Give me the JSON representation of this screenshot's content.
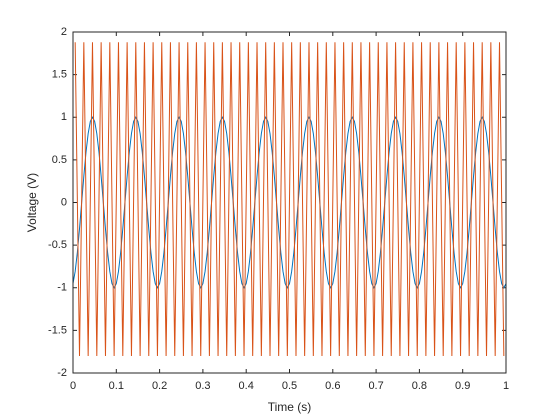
{
  "chart_data": {
    "type": "line",
    "x_label": "Time (s)",
    "y_label": "Voltage (V)",
    "xlim": [
      0,
      1
    ],
    "ylim": [
      -2,
      2
    ],
    "xticks": [
      0,
      0.1,
      0.2,
      0.3,
      0.4,
      0.5,
      0.6,
      0.7,
      0.8,
      0.9,
      1
    ],
    "yticks": [
      -2,
      -1.5,
      -1,
      -0.5,
      0,
      0.5,
      1,
      1.5,
      2
    ],
    "series": [
      {
        "color": "#0072BD",
        "x": [
          0,
          0.005,
          0.01,
          0.015,
          0.02,
          0.025,
          0.03,
          0.035,
          0.04,
          0.045,
          0.05,
          0.055,
          0.06,
          0.065,
          0.07,
          0.075,
          0.08,
          0.085,
          0.09,
          0.095,
          0.1,
          0.105,
          0.11,
          0.115,
          0.12,
          0.125,
          0.13,
          0.135,
          0.14,
          0.145,
          0.15,
          0.155,
          0.16,
          0.165,
          0.17,
          0.175,
          0.18,
          0.185,
          0.19,
          0.195,
          0.2,
          0.205,
          0.21,
          0.215,
          0.22,
          0.225,
          0.23,
          0.235,
          0.24,
          0.245,
          0.25,
          0.255,
          0.26,
          0.265,
          0.27,
          0.275,
          0.28,
          0.285,
          0.29,
          0.295,
          0.3,
          0.305,
          0.31,
          0.315,
          0.32,
          0.325,
          0.33,
          0.335,
          0.34,
          0.345,
          0.35,
          0.355,
          0.36,
          0.365,
          0.37,
          0.375,
          0.38,
          0.385,
          0.39,
          0.395,
          0.4,
          0.405,
          0.41,
          0.415,
          0.42,
          0.425,
          0.43,
          0.435,
          0.44,
          0.445,
          0.45,
          0.455,
          0.46,
          0.465,
          0.47,
          0.475,
          0.48,
          0.485,
          0.49,
          0.495,
          0.5,
          0.505,
          0.51,
          0.515,
          0.52,
          0.525,
          0.53,
          0.535,
          0.54,
          0.545,
          0.55,
          0.555,
          0.56,
          0.565,
          0.57,
          0.575,
          0.58,
          0.585,
          0.59,
          0.595,
          0.6,
          0.605,
          0.61,
          0.615,
          0.62,
          0.625,
          0.63,
          0.635,
          0.64,
          0.645,
          0.65,
          0.655,
          0.66,
          0.665,
          0.67,
          0.675,
          0.68,
          0.685,
          0.69,
          0.695,
          0.7,
          0.705,
          0.71,
          0.715,
          0.72,
          0.725,
          0.73,
          0.735,
          0.74,
          0.745,
          0.75,
          0.755,
          0.76,
          0.765,
          0.77,
          0.775,
          0.78,
          0.785,
          0.79,
          0.795,
          0.8,
          0.805,
          0.81,
          0.815,
          0.82,
          0.825,
          0.83,
          0.835,
          0.84,
          0.845,
          0.85,
          0.855,
          0.86,
          0.865,
          0.87,
          0.875,
          0.88,
          0.885,
          0.89,
          0.895,
          0.9,
          0.905,
          0.91,
          0.915,
          0.92,
          0.925,
          0.93,
          0.935,
          0.94,
          0.945,
          0.95,
          0.955,
          0.96,
          0.965,
          0.97,
          0.975,
          0.98,
          0.985,
          0.99,
          0.995,
          1
        ],
        "values": [
          -0.951,
          -0.809,
          -0.588,
          -0.309,
          0,
          0.309,
          0.588,
          0.809,
          0.951,
          1,
          0.951,
          0.809,
          0.588,
          0.309,
          0,
          -0.309,
          -0.588,
          -0.809,
          -0.951,
          -1,
          -0.951,
          -0.809,
          -0.588,
          -0.309,
          0,
          0.309,
          0.588,
          0.809,
          0.951,
          1,
          0.951,
          0.809,
          0.588,
          0.309,
          0,
          -0.309,
          -0.588,
          -0.809,
          -0.951,
          -1,
          -0.951,
          -0.809,
          -0.588,
          -0.309,
          0,
          0.309,
          0.588,
          0.809,
          0.951,
          1,
          0.951,
          0.809,
          0.588,
          0.309,
          0,
          -0.309,
          -0.588,
          -0.809,
          -0.951,
          -1,
          -0.951,
          -0.809,
          -0.588,
          -0.309,
          0,
          0.309,
          0.588,
          0.809,
          0.951,
          1,
          0.951,
          0.809,
          0.588,
          0.309,
          0,
          -0.309,
          -0.588,
          -0.809,
          -0.951,
          -1,
          -0.951,
          -0.809,
          -0.588,
          -0.309,
          0,
          0.309,
          0.588,
          0.809,
          0.951,
          1,
          0.951,
          0.809,
          0.588,
          0.309,
          0,
          -0.309,
          -0.588,
          -0.809,
          -0.951,
          -1,
          -0.951,
          -0.809,
          -0.588,
          -0.309,
          0,
          0.309,
          0.588,
          0.809,
          0.951,
          1,
          0.951,
          0.809,
          0.588,
          0.309,
          0,
          -0.309,
          -0.588,
          -0.809,
          -0.951,
          -1,
          -0.951,
          -0.809,
          -0.588,
          -0.309,
          0,
          0.309,
          0.588,
          0.809,
          0.951,
          1,
          0.951,
          0.809,
          0.588,
          0.309,
          0,
          -0.309,
          -0.588,
          -0.809,
          -0.951,
          -1,
          -0.951,
          -0.809,
          -0.588,
          -0.309,
          0,
          0.309,
          0.588,
          0.809,
          0.951,
          1,
          0.951,
          0.809,
          0.588,
          0.309,
          0,
          -0.309,
          -0.588,
          -0.809,
          -0.951,
          -1,
          -0.951,
          -0.809,
          -0.588,
          -0.309,
          0,
          0.309,
          0.588,
          0.809,
          0.951,
          1,
          0.951,
          0.809,
          0.588,
          0.309,
          0,
          -0.309,
          -0.588,
          -0.809,
          -0.951,
          -1,
          -0.951,
          -0.809,
          -0.588,
          -0.309,
          0,
          0.309,
          0.588,
          0.809,
          0.951,
          1,
          0.951,
          0.809,
          0.588,
          0.309,
          0,
          -0.309,
          -0.588,
          -0.809,
          -0.951,
          -1,
          -0.951
        ]
      },
      {
        "color": "#D95319",
        "x": [
          0.005,
          0.015,
          0.025,
          0.035,
          0.045,
          0.055,
          0.065,
          0.075,
          0.085,
          0.095,
          0.105,
          0.115,
          0.125,
          0.135,
          0.145,
          0.155,
          0.165,
          0.175,
          0.185,
          0.195,
          0.205,
          0.215,
          0.225,
          0.235,
          0.245,
          0.255,
          0.265,
          0.275,
          0.285,
          0.295,
          0.305,
          0.315,
          0.325,
          0.335,
          0.345,
          0.355,
          0.365,
          0.375,
          0.385,
          0.395,
          0.405,
          0.415,
          0.425,
          0.435,
          0.445,
          0.455,
          0.465,
          0.475,
          0.485,
          0.495,
          0.505,
          0.515,
          0.525,
          0.535,
          0.545,
          0.555,
          0.565,
          0.575,
          0.585,
          0.595,
          0.605,
          0.615,
          0.625,
          0.635,
          0.645,
          0.655,
          0.665,
          0.675,
          0.685,
          0.695,
          0.705,
          0.715,
          0.725,
          0.735,
          0.745,
          0.755,
          0.765,
          0.775,
          0.785,
          0.795,
          0.805,
          0.815,
          0.825,
          0.835,
          0.845,
          0.855,
          0.865,
          0.875,
          0.885,
          0.895,
          0.905,
          0.915,
          0.925,
          0.935,
          0.945,
          0.955,
          0.965,
          0.975,
          0.985,
          0.995
        ],
        "values": [
          1.88,
          -1.8,
          1.88,
          -1.8,
          1.88,
          -1.8,
          1.88,
          -1.8,
          1.88,
          -1.8,
          1.88,
          -1.8,
          1.88,
          -1.8,
          1.88,
          -1.8,
          1.88,
          -1.8,
          1.88,
          -1.8,
          1.88,
          -1.8,
          1.88,
          -1.8,
          1.88,
          -1.8,
          1.88,
          -1.8,
          1.88,
          -1.8,
          1.88,
          -1.8,
          1.88,
          -1.8,
          1.88,
          -1.8,
          1.88,
          -1.8,
          1.88,
          -1.8,
          1.88,
          -1.8,
          1.88,
          -1.8,
          1.88,
          -1.8,
          1.88,
          -1.8,
          1.88,
          -1.8,
          1.88,
          -1.8,
          1.88,
          -1.8,
          1.88,
          -1.8,
          1.88,
          -1.8,
          1.88,
          -1.8,
          1.88,
          -1.8,
          1.88,
          -1.8,
          1.88,
          -1.8,
          1.88,
          -1.8,
          1.88,
          -1.8,
          1.88,
          -1.8,
          1.88,
          -1.8,
          1.88,
          -1.8,
          1.88,
          -1.8,
          1.88,
          -1.8,
          1.88,
          -1.8,
          1.88,
          -1.8,
          1.88,
          -1.8,
          1.88,
          -1.8,
          1.88,
          -1.8,
          1.88,
          -1.8,
          1.88,
          -1.8,
          1.88,
          -1.8,
          1.88,
          -1.8,
          1.88,
          -1.8
        ]
      }
    ]
  }
}
